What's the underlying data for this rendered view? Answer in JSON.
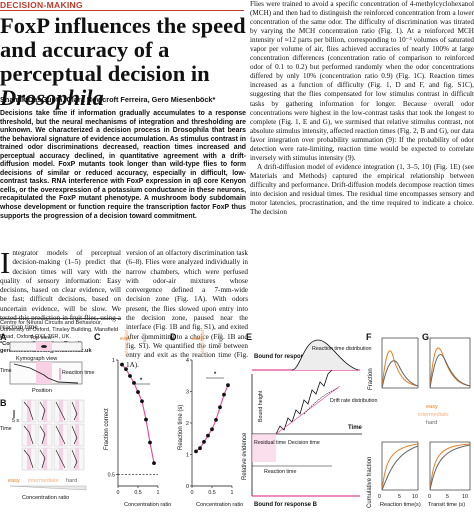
{
  "header": {
    "section": "DECISION-MAKING",
    "title_main": "FoxP influences the speed and accuracy of a perceptual decision in ",
    "title_italic": "Drosophila",
    "authors": "Shamik DasGupta, Clara Howcroft Ferreira, Gero Miesenböck*"
  },
  "abstract": "Decisions take time if information gradually accumulates to a response threshold, but the neural mechanisms of integration and thresholding are unknown. We characterized a decision process in Drosophila that bears the behavioral signature of evidence accumulation. As stimulus contrast in trained odor discriminations decreased, reaction times increased and perceptual accuracy declined, in quantitative agreement with a drift-diffusion model. FoxP mutants took longer than wild-type flies to form decisions of similar or reduced accuracy, especially in difficult, low-contrast tasks. RNA interference with FoxP expression in αβ core Kenyon cells, or the overexpression of a potassium conductance in these neurons, recapitulated the FoxP mutant phenotype. A mushroom body subdomain whose development or function require the transcription factor FoxP thus supports the progression of a decision toward commitment.",
  "body": {
    "col1_dropcap": "I",
    "col1": "ntegrator models of perceptual decision-making (1–5) predict that decision times will vary with the quality of sensory information: Easy decisions, based on clear evidence, will be fast; difficult decisions, based on uncertain evidence, will be slow. We tested this prediction in fruit flies, using a reaction time",
    "col2": "version of an olfactory discrimination task (6–8). Flies were analyzed individually in narrow chambers, which were perfused with odor-air mixtures whose convergence defined a 7-mm-wide decision zone (Fig. 1A). With odors present, the flies slowed upon entry into the decision zone, paused near the interface (Fig. 1B and fig. S1), and exited after committing to a choice (Fig. 1B and fig. S1). We quantified the time between entry and exit as the reaction time (Fig. 1A).",
    "affiliation": "Centre for Neural Circuits and Behaviour, University of Oxford, Tinsley Building, Mansfield Road, Oxford OX1 3SR, UK.",
    "corresponding": "*Corresponding author. E-mail: gero.miesenboeck@cncb.ox.ac.uk",
    "col3_p1": "Flies were trained to avoid a specific concentration of 4-methylcyclohexanol (MCH) and then had to distinguish the reinforced concentration from a lower concentration of the same odor. The difficulty of discrimination was titrated by varying the MCH concentration ratio (Fig. 1). At a reinforced MCH intensity of ≈12 parts per billion, corresponding to 10⁻³ volumes of saturated vapor per volume of air, flies achieved accuracies of nearly 100% at large concentration differences (concentration ratio of comparison to reinforced odor of 0.1 to 0.2) but performed randomly when the odor concentrations differed by only 10% (concentration ratio 0.9) (Fig. 1C). Reaction times increased as a function of difficulty (Fig. 1, D and F, and fig. S1C), suggesting that the flies compensated for low stimulus contrast in difficult tasks by gathering information for longer. Because overall odor concentrations were highest in the low-contrast tasks that took the longest to complete (Fig. 1, E and G), we surmised that relative stimulus contrast, not absolute stimulus intensity, affected reaction times (Fig. 2, B and G), our data favor integration over probability summation (9): If the probability of odor detection were rate-limiting, reaction time would be expected to correlate inversely with stimulus intensity (9).",
    "col3_p2": "A drift-diffusion model of evidence integration (1, 3–5, 10) (Fig. 1E) (see Materials and Methods) captured the empirical relationship between difficulty and performance. Drift-diffusion models decompose reaction times into decision and residual times. The residual time encompasses sensory and motor latencies, procrastination, and the time required to indicate a choice. The decision"
  },
  "figure": {
    "panel_A": {
      "letter": "A",
      "top_view": "Top view",
      "kymo_view": "Kymograph view",
      "time_label": "Time",
      "reaction_time": "Reaction time",
      "position": "Position",
      "airflow_left": "odor ↓",
      "airflow_right": "↓"
    },
    "panel_B": {
      "letter": "B",
      "time_label": "Time",
      "scale": "5 s",
      "conditions": [
        "easy",
        "intermediate",
        "hard"
      ],
      "xlabel": "Concentration ratio"
    },
    "panel_C": {
      "letter": "C",
      "ylabel": "Fraction correct",
      "xlabel": "Concentration ratio",
      "conditions": [
        "easy",
        "intermediate",
        "hard"
      ],
      "significance": "*",
      "yticks": [
        "0.5",
        "1"
      ],
      "xticks": [
        "0",
        "0.5",
        "1"
      ]
    },
    "panel_D": {
      "letter": "D",
      "ylabel": "Reaction time (s)",
      "xlabel": "Concentration ratio",
      "conditions": [
        "easy",
        "intermediate",
        "hard"
      ],
      "significance": "*",
      "yticks": [
        "0",
        "1",
        "2",
        "3",
        "4"
      ],
      "xticks": [
        "0",
        "0.5",
        "1"
      ]
    },
    "panel_E": {
      "letter": "E",
      "bound_a": "Bound for response A",
      "bound_b": "Bound for response B",
      "reaction_time_dist": "Reaction time distribution",
      "drift_rate": "Drift rate distribution",
      "bound_height": "Bound height",
      "relative_evidence": "Relative evidence",
      "residual_time": "Residual time",
      "decision_time": "Decision time",
      "reaction_time": "Reaction time",
      "time": "Time"
    },
    "panel_F": {
      "letter": "F",
      "ylabel_top": "Fraction",
      "ylabel_bottom": "Cumulative fraction",
      "xlabel": "Reaction time(s)",
      "xticks": [
        "0",
        "5",
        "10"
      ],
      "yticks_top": [
        "0",
        "0.1",
        "0.2"
      ],
      "yticks_bottom": [
        "0",
        "0.5",
        "1"
      ]
    },
    "panel_G": {
      "letter": "G",
      "xlabel": "Transit time (s)",
      "xticks": [
        "0",
        "5",
        "10"
      ],
      "legend": [
        "easy",
        "intermediate",
        "hard"
      ]
    }
  },
  "chart_data": [
    {
      "type": "line",
      "panel": "C",
      "xlabel": "Concentration ratio",
      "ylabel": "Fraction correct",
      "ylim": [
        0.45,
        1.0
      ],
      "xlim": [
        0,
        1
      ],
      "series": [
        {
          "x": [
            0.1,
            0.2,
            0.3,
            0.4,
            0.5,
            0.6,
            0.7,
            0.8,
            0.9
          ],
          "y": [
            0.98,
            0.96,
            0.93,
            0.9,
            0.86,
            0.82,
            0.74,
            0.64,
            0.55
          ]
        }
      ],
      "reference_line": 0.5
    },
    {
      "type": "line",
      "panel": "D",
      "xlabel": "Concentration ratio",
      "ylabel": "Reaction time (s)",
      "ylim": [
        0,
        4
      ],
      "xlim": [
        0,
        1
      ],
      "series": [
        {
          "x": [
            0.1,
            0.2,
            0.3,
            0.4,
            0.5,
            0.6,
            0.7,
            0.8,
            0.9
          ],
          "y": [
            1.1,
            1.2,
            1.4,
            1.6,
            1.8,
            2.1,
            2.5,
            2.9,
            3.2
          ]
        }
      ]
    }
  ],
  "colors": {
    "accent": "#c0392b",
    "easy": "#e67e22",
    "intermediate": "#f4b183",
    "hard": "#666666",
    "pink": "#e8469a",
    "curve": "#111111"
  }
}
